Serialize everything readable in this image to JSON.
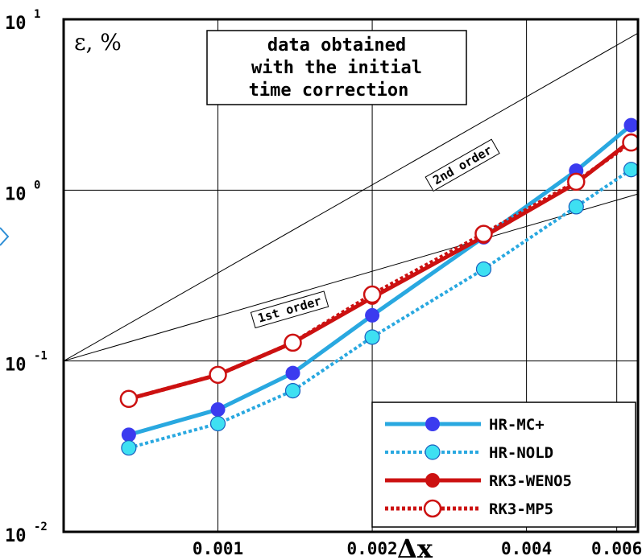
{
  "chart_data": {
    "type": "line",
    "title": "",
    "xlabel": "Δx",
    "ylabel": "ε, %",
    "xscale": "log",
    "yscale": "log",
    "xlim": [
      0.0005,
      0.0066
    ],
    "ylim": [
      0.01,
      10
    ],
    "grid": true,
    "x_ticks": [
      {
        "value": 0.001,
        "label": "0.001"
      },
      {
        "value": 0.002,
        "label": "0.002"
      },
      {
        "value": 0.004,
        "label": "0.004"
      },
      {
        "value": 0.006,
        "label": "0.006"
      }
    ],
    "y_ticks": [
      {
        "value": 0.01,
        "base": "10",
        "exp": "-2"
      },
      {
        "value": 0.1,
        "base": "10",
        "exp": "-1"
      },
      {
        "value": 1,
        "base": "10",
        "exp": "0"
      },
      {
        "value": 10,
        "base": "10",
        "exp": "1"
      }
    ],
    "annotation": [
      "data obtained",
      "with the initial",
      "time correction"
    ],
    "reference_lines": [
      {
        "label": "1st order",
        "x0": 0.0005,
        "y0": 0.1,
        "x1": 0.0066,
        "y1": 0.95,
        "label_x": 0.00138,
        "label_y": 0.2
      },
      {
        "label": "2nd order",
        "x0": 0.0005,
        "y0": 0.1,
        "x1": 0.0066,
        "y1": 8.3,
        "label_x": 0.003,
        "label_y": 1.4
      }
    ],
    "legend_position": "bottom-right",
    "series": [
      {
        "name": "HR-MC+",
        "color": "#29a8e0",
        "marker_color": "#3b3bef",
        "line": "solid",
        "marker": "filled",
        "x": [
          0.00067,
          0.001,
          0.0014,
          0.002,
          0.0033,
          0.005,
          0.0064
        ],
        "y": [
          0.037,
          0.052,
          0.085,
          0.185,
          0.53,
          1.3,
          2.4
        ]
      },
      {
        "name": "HR-NOLD",
        "color": "#29a8e0",
        "marker_color": "#3ee0f2",
        "line": "dotted",
        "marker": "filled",
        "x": [
          0.00067,
          0.001,
          0.0014,
          0.002,
          0.0033,
          0.005,
          0.0064
        ],
        "y": [
          0.031,
          0.043,
          0.067,
          0.138,
          0.345,
          0.8,
          1.32
        ]
      },
      {
        "name": "RK3-WENO5",
        "color": "#cc1111",
        "marker_color": "#cc1111",
        "line": "solid",
        "marker": "filled",
        "x": [
          0.00067,
          0.001,
          0.0014,
          0.002,
          0.0033,
          0.005,
          0.0064
        ],
        "y": [
          0.06,
          0.083,
          0.128,
          0.235,
          0.535,
          1.1,
          1.95
        ]
      },
      {
        "name": "RK3-MP5",
        "color": "#cc1111",
        "marker_color": "#cc1111",
        "line": "dotted",
        "marker": "open",
        "x": [
          0.00067,
          0.001,
          0.0014,
          0.002,
          0.0033,
          0.005,
          0.0064
        ],
        "y": [
          0.06,
          0.083,
          0.128,
          0.245,
          0.555,
          1.12,
          1.9
        ]
      }
    ]
  }
}
